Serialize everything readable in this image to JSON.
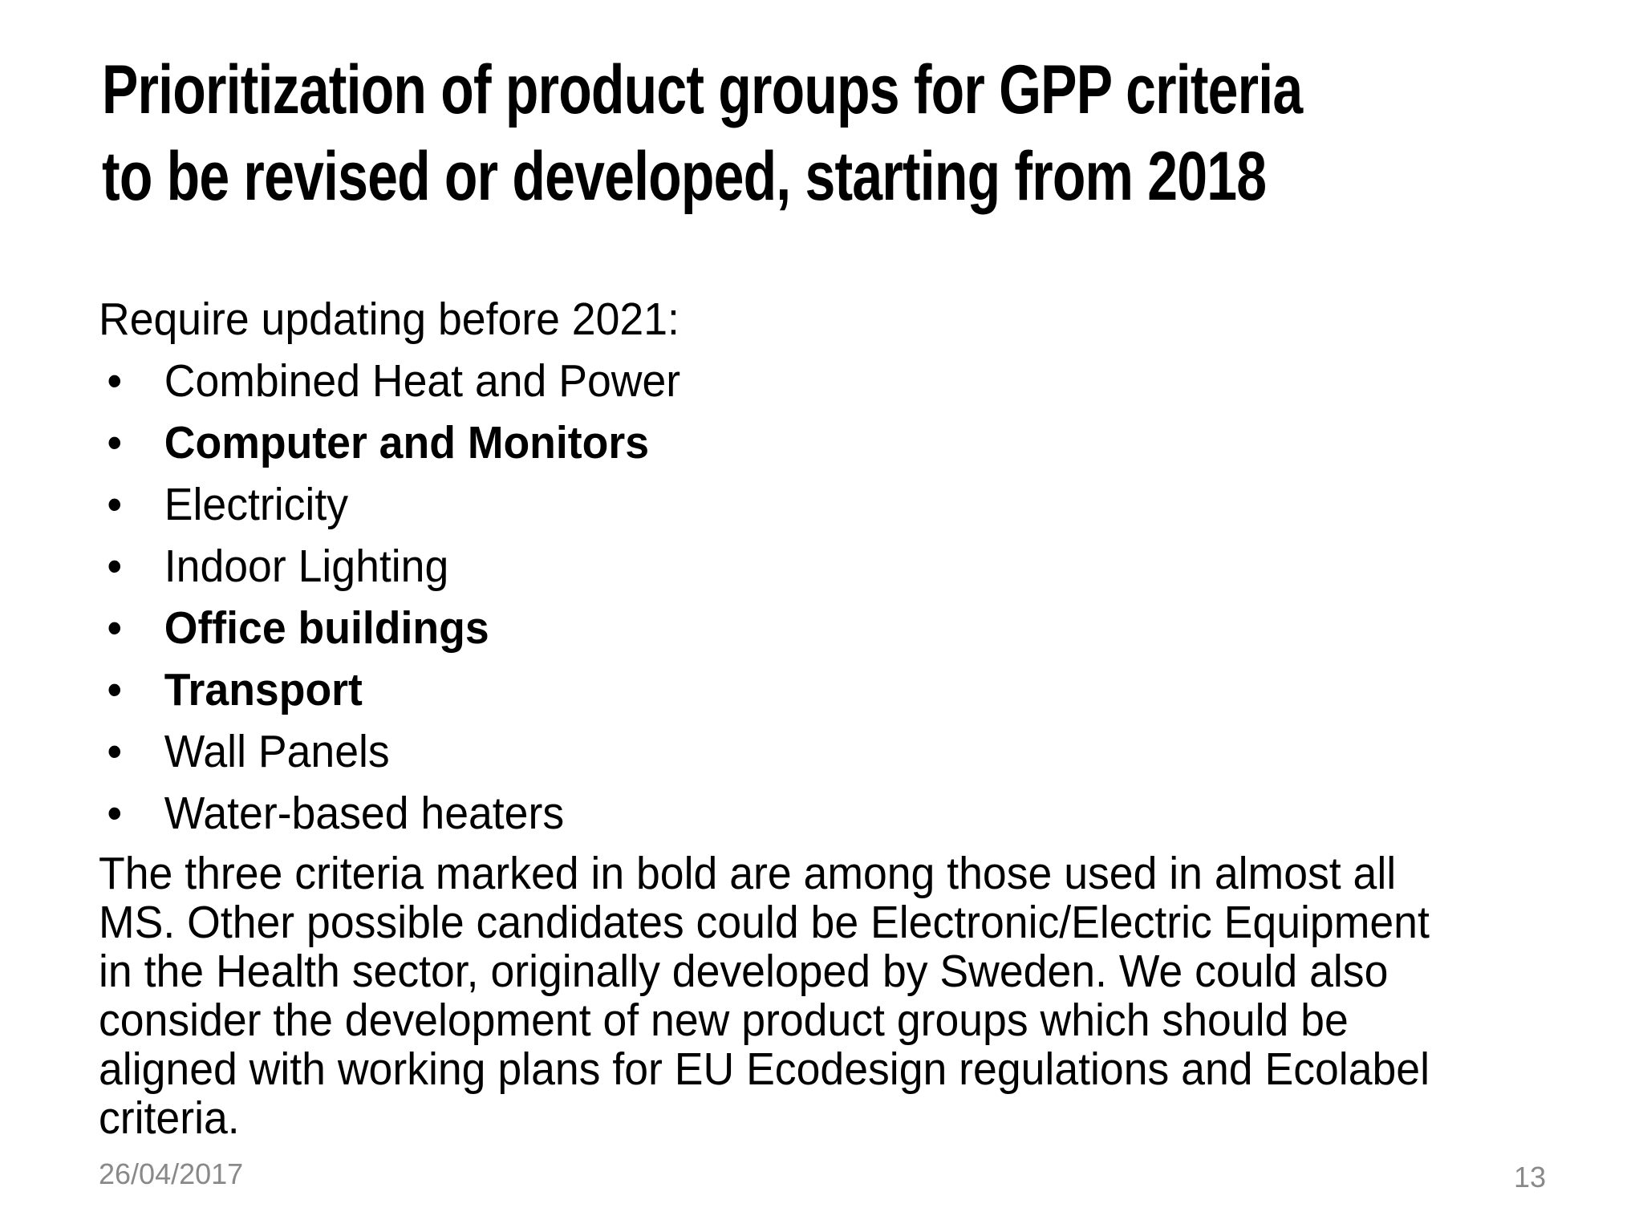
{
  "slide": {
    "background_color": "#ffffff",
    "text_color": "#000000",
    "footer_color": "#898989",
    "title_line1": "Prioritization of product groups for GPP criteria",
    "title_line2": "to be revised or developed, starting from 2018",
    "intro": "Require updating before 2021:",
    "bullet_char": "•",
    "bullets": [
      {
        "text": "Combined Heat and Power",
        "bold": false
      },
      {
        "text": "Computer and Monitors",
        "bold": true
      },
      {
        "text": "Electricity",
        "bold": false
      },
      {
        "text": "Indoor Lighting",
        "bold": false
      },
      {
        "text": "Office buildings",
        "bold": true
      },
      {
        "text": "Transport",
        "bold": true
      },
      {
        "text": "Wall Panels",
        "bold": false
      },
      {
        "text": "Water-based heaters",
        "bold": false
      }
    ],
    "paragraph_lines": [
      "The three criteria marked in bold are among those used in almost all",
      "MS. Other possible candidates could be Electronic/Electric Equipment",
      "in the Health sector, originally developed by Sweden. We could also",
      "consider the development of new product groups which should be",
      "aligned with working plans for EU Ecodesign regulations and Ecolabel",
      "criteria."
    ],
    "footer": {
      "date": "26/04/2017",
      "page_number": "13"
    }
  }
}
